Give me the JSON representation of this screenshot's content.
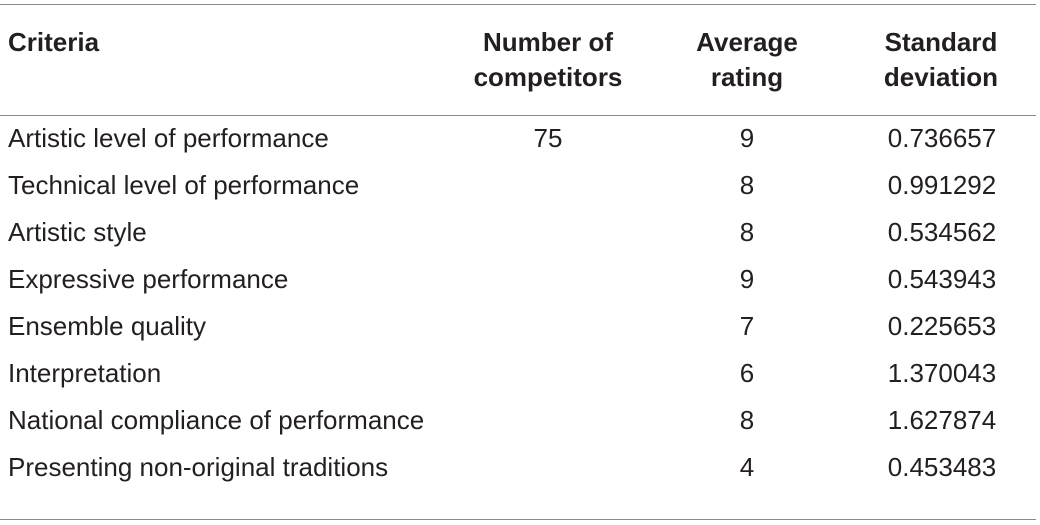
{
  "table": {
    "headers": {
      "criteria": "Criteria",
      "competitors_line1": "Number of",
      "competitors_line2": "competitors",
      "rating_line1": "Average",
      "rating_line2": "rating",
      "sd_line1": "Standard",
      "sd_line2": "deviation"
    },
    "rows": [
      {
        "criteria": "Artistic level of performance",
        "competitors": "75",
        "rating": "9",
        "sd": "0.736657"
      },
      {
        "criteria": "Technical level of performance",
        "competitors": "",
        "rating": "8",
        "sd": "0.991292"
      },
      {
        "criteria": "Artistic style",
        "competitors": "",
        "rating": "8",
        "sd": "0.534562"
      },
      {
        "criteria": "Expressive performance",
        "competitors": "",
        "rating": "9",
        "sd": "0.543943"
      },
      {
        "criteria": "Ensemble quality",
        "competitors": "",
        "rating": "7",
        "sd": "0.225653"
      },
      {
        "criteria": "Interpretation",
        "competitors": "",
        "rating": "6",
        "sd": "1.370043"
      },
      {
        "criteria": "National compliance of performance",
        "competitors": "",
        "rating": "8",
        "sd": "1.627874"
      },
      {
        "criteria": "Presenting non-original traditions",
        "competitors": "",
        "rating": "4",
        "sd": "0.453483"
      }
    ]
  }
}
